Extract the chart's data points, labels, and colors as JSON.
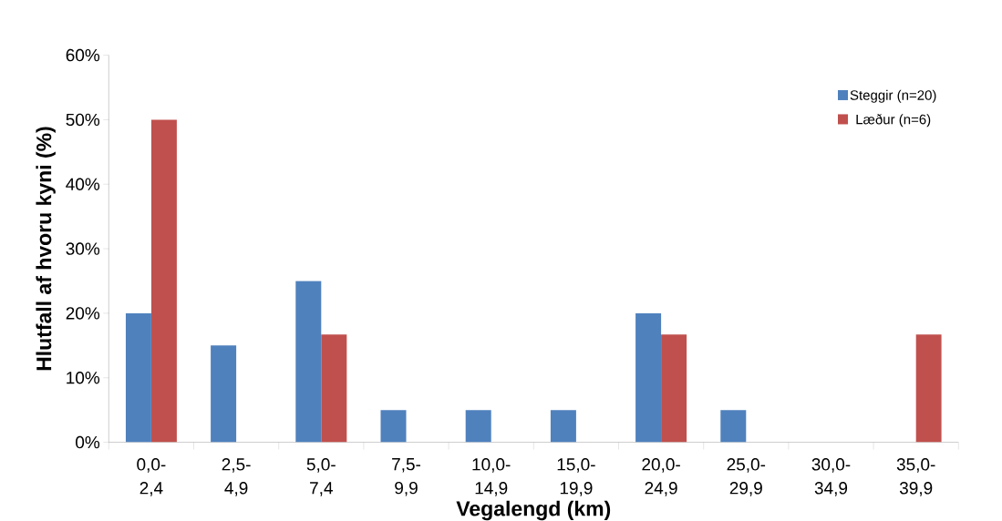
{
  "chart_data": {
    "type": "bar",
    "xlabel": "Vegalengd (km)",
    "ylabel": "Hlutfall af hvoru kyni (%)",
    "categories": [
      "0,0-2,4",
      "2,5-4,9",
      "5,0-7,4",
      "7,5-9,9",
      "10,0-14,9",
      "15,0-19,9",
      "20,0-24,9",
      "25,0-29,9",
      "30,0-34,9",
      "35,0-39,9"
    ],
    "series": [
      {
        "name": "Steggir (n=20)",
        "color": "#4f81bd",
        "values": [
          20,
          15,
          25,
          5,
          5,
          5,
          20,
          5,
          0,
          0
        ]
      },
      {
        "name": "Læður (n=6)",
        "color": "#c0504d",
        "values": [
          50,
          0,
          16.7,
          0,
          0,
          0,
          16.7,
          0,
          0,
          16.7
        ]
      }
    ],
    "ylim": [
      0,
      60
    ],
    "yticks": [
      {
        "value": 0,
        "label": "0%"
      },
      {
        "value": 10,
        "label": "10%"
      },
      {
        "value": 20,
        "label": "20%"
      },
      {
        "value": 30,
        "label": "30%"
      },
      {
        "value": 40,
        "label": "40%"
      },
      {
        "value": 50,
        "label": "50%"
      },
      {
        "value": 60,
        "label": "60%"
      }
    ],
    "grid": false,
    "legend": "top right"
  }
}
